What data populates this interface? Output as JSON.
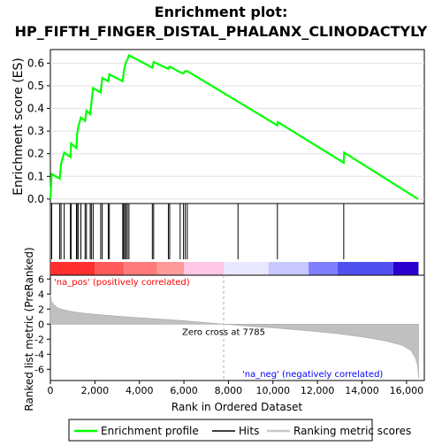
{
  "chart_data": {
    "type": "line",
    "title_line1": "Enrichment plot:",
    "title_line2": "HP_FIFTH_FINGER_DISTAL_PHALANX_CLINODACTYLY",
    "enrichment_panel": {
      "ylabel": "Enrichment score (ES)",
      "ylim": [
        -0.02,
        0.66
      ],
      "yticks": [
        "0.0",
        "0.1",
        "0.2",
        "0.3",
        "0.4",
        "0.5",
        "0.6"
      ],
      "ytick_values": [
        0.0,
        0.1,
        0.2,
        0.3,
        0.4,
        0.5,
        0.6
      ],
      "xlim": [
        0,
        16800
      ],
      "color": "#00ff00",
      "points": [
        [
          0,
          0.0
        ],
        [
          60,
          0.11
        ],
        [
          420,
          0.09
        ],
        [
          480,
          0.155
        ],
        [
          620,
          0.205
        ],
        [
          900,
          0.185
        ],
        [
          930,
          0.245
        ],
        [
          1170,
          0.225
        ],
        [
          1200,
          0.285
        ],
        [
          1260,
          0.32
        ],
        [
          1370,
          0.36
        ],
        [
          1560,
          0.345
        ],
        [
          1620,
          0.39
        ],
        [
          1790,
          0.375
        ],
        [
          1840,
          0.42
        ],
        [
          1920,
          0.49
        ],
        [
          2260,
          0.47
        ],
        [
          2330,
          0.535
        ],
        [
          2600,
          0.52
        ],
        [
          2650,
          0.55
        ],
        [
          3250,
          0.52
        ],
        [
          3290,
          0.555
        ],
        [
          3340,
          0.585
        ],
        [
          3400,
          0.605
        ],
        [
          3460,
          0.615
        ],
        [
          3530,
          0.635
        ],
        [
          4580,
          0.58
        ],
        [
          4640,
          0.605
        ],
        [
          5300,
          0.575
        ],
        [
          5360,
          0.585
        ],
        [
          5830,
          0.56
        ],
        [
          5980,
          0.555
        ],
        [
          6060,
          0.565
        ],
        [
          6150,
          0.565
        ],
        [
          8430,
          0.43
        ],
        [
          10200,
          0.325
        ],
        [
          10220,
          0.34
        ],
        [
          13180,
          0.16
        ],
        [
          13200,
          0.205
        ],
        [
          16520,
          0.0
        ]
      ]
    },
    "hits_panel": {
      "positions": [
        60,
        420,
        480,
        620,
        900,
        930,
        1170,
        1200,
        1260,
        1370,
        1560,
        1620,
        1790,
        1840,
        1920,
        2260,
        2330,
        2600,
        2650,
        3250,
        3290,
        3340,
        3400,
        3460,
        3530,
        4580,
        4640,
        5300,
        5360,
        5830,
        5980,
        6060,
        6150,
        8430,
        10200,
        13180
      ]
    },
    "ranked_panel": {
      "ylabel": "Ranked list metric (PreRanked)",
      "yticks": [
        "-6",
        "-4",
        "-2",
        "0",
        "2",
        "4",
        "6"
      ],
      "ytick_values": [
        -6,
        -4,
        -2,
        0,
        2,
        4,
        6
      ],
      "ylim": [
        -7.5,
        6.5
      ],
      "xlabel": "Rank in Ordered Dataset",
      "xticks": [
        "0",
        "2,000",
        "4,000",
        "6,000",
        "8,000",
        "10,000",
        "12,000",
        "14,000",
        "16,000"
      ],
      "xtick_values": [
        0,
        2000,
        4000,
        6000,
        8000,
        10000,
        12000,
        14000,
        16000
      ],
      "xlim": [
        0,
        16800
      ],
      "zero_cross_label": "Zero cross at 7785",
      "zero_cross": 7785,
      "pos_label": "'na_pos' (positively correlated)",
      "neg_label": "'na_neg' (negatively correlated)",
      "pos_color": "#ff0000",
      "neg_color": "#0000ff",
      "metric_curve": [
        [
          0,
          4.0
        ],
        [
          50,
          3.0
        ],
        [
          150,
          2.6
        ],
        [
          300,
          2.2
        ],
        [
          600,
          1.9
        ],
        [
          1000,
          1.65
        ],
        [
          1500,
          1.45
        ],
        [
          2000,
          1.3
        ],
        [
          3000,
          1.05
        ],
        [
          4000,
          0.85
        ],
        [
          5000,
          0.65
        ],
        [
          6000,
          0.45
        ],
        [
          7000,
          0.2
        ],
        [
          7785,
          0.0
        ],
        [
          9000,
          -0.3
        ],
        [
          10000,
          -0.5
        ],
        [
          11000,
          -0.75
        ],
        [
          12000,
          -1.0
        ],
        [
          13000,
          -1.3
        ],
        [
          14000,
          -1.7
        ],
        [
          15000,
          -2.2
        ],
        [
          15800,
          -2.8
        ],
        [
          16200,
          -3.5
        ],
        [
          16400,
          -4.5
        ],
        [
          16500,
          -5.5
        ],
        [
          16540,
          -7.2
        ]
      ]
    },
    "legend": {
      "entries": [
        "Enrichment profile",
        "Hits",
        "Ranking metric scores"
      ],
      "colors": [
        "#00ff00",
        "#000000",
        "#c8c8c8"
      ]
    }
  }
}
